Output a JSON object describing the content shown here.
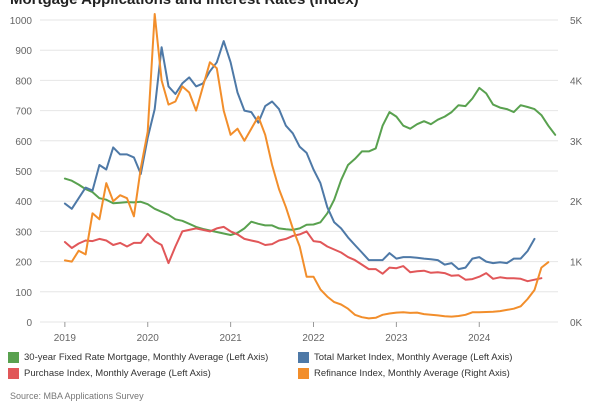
{
  "title": "Mortgage Applications and Interest Rates (Index)",
  "source": "Source: MBA Applications Survey",
  "colors": {
    "fixed30": "#59a14f",
    "total": "#4e79a7",
    "purchase": "#e15759",
    "refinance": "#f28e2b",
    "grid": "#e6e6e6",
    "axis": "#999999"
  },
  "legend": [
    {
      "key": "fixed30",
      "label": "30-year Fixed Rate Mortgage, Monthly Average (Left Axis)"
    },
    {
      "key": "total",
      "label": "Total Market Index, Monthly Average (Left Axis)"
    },
    {
      "key": "purchase",
      "label": "Purchase Index, Monthly Average (Left Axis)"
    },
    {
      "key": "refinance",
      "label": "Refinance Index, Monthly Average (Right Axis)"
    }
  ],
  "chart_data": {
    "type": "line",
    "title": "Mortgage Applications and Interest Rates (Index)",
    "x_start": "2019-01",
    "x_ticks": [
      "2019",
      "2020",
      "2021",
      "2022",
      "2023",
      "2024"
    ],
    "left_axis": {
      "min": 0,
      "max": 1000,
      "ticks": [
        0,
        100,
        200,
        300,
        400,
        500,
        600,
        700,
        800,
        900,
        1000
      ]
    },
    "right_axis": {
      "min": 0,
      "max": 5000,
      "ticks": [
        0,
        1000,
        2000,
        3000,
        4000,
        5000
      ],
      "tick_labels": [
        "0K",
        "1K",
        "2K",
        "3K",
        "4K",
        "5K"
      ]
    },
    "grid": true,
    "legend_position": "bottom",
    "series": [
      {
        "name": "30-year Fixed Rate Mortgage, Monthly Average (Left Axis)",
        "key": "fixed30",
        "axis": "left",
        "values": [
          475,
          468,
          455,
          440,
          430,
          410,
          405,
          393,
          395,
          397,
          396,
          398,
          390,
          375,
          365,
          355,
          340,
          335,
          325,
          315,
          308,
          303,
          298,
          293,
          288,
          295,
          310,
          332,
          325,
          320,
          320,
          310,
          307,
          305,
          310,
          322,
          323,
          330,
          360,
          405,
          470,
          520,
          540,
          565,
          565,
          575,
          650,
          695,
          680,
          650,
          640,
          655,
          665,
          655,
          670,
          680,
          695,
          718,
          715,
          740,
          775,
          757,
          720,
          710,
          705,
          695,
          718,
          712,
          705,
          685,
          650,
          620
        ]
      },
      {
        "name": "Total Market Index, Monthly Average (Left Axis)",
        "key": "total",
        "axis": "left",
        "values": [
          392,
          375,
          410,
          445,
          435,
          520,
          505,
          578,
          555,
          555,
          545,
          490,
          610,
          705,
          910,
          780,
          755,
          790,
          810,
          780,
          790,
          830,
          860,
          930,
          860,
          760,
          700,
          695,
          660,
          715,
          730,
          705,
          650,
          625,
          580,
          560,
          505,
          460,
          380,
          330,
          310,
          280,
          255,
          230,
          205,
          205,
          205,
          228,
          210,
          215,
          215,
          213,
          210,
          208,
          205,
          190,
          195,
          175,
          180,
          210,
          215,
          200,
          195,
          198,
          195,
          210,
          210,
          235,
          275
        ]
      },
      {
        "name": "Purchase Index, Monthly Average (Left Axis)",
        "key": "purchase",
        "axis": "left",
        "values": [
          265,
          245,
          260,
          270,
          268,
          275,
          270,
          255,
          262,
          250,
          262,
          262,
          292,
          268,
          255,
          195,
          250,
          300,
          305,
          310,
          305,
          300,
          310,
          315,
          300,
          290,
          275,
          270,
          265,
          255,
          258,
          270,
          275,
          285,
          290,
          300,
          268,
          265,
          250,
          240,
          230,
          215,
          205,
          190,
          175,
          175,
          160,
          180,
          178,
          185,
          165,
          168,
          170,
          163,
          165,
          162,
          153,
          155,
          140,
          142,
          150,
          162,
          143,
          148,
          145,
          145,
          143,
          135,
          140,
          145
        ]
      },
      {
        "name": "Refinance Index, Monthly Average (Right Axis)",
        "key": "refinance",
        "axis": "right",
        "values": [
          1020,
          1000,
          1180,
          1120,
          1800,
          1700,
          2300,
          2000,
          2100,
          2050,
          1750,
          2550,
          3150,
          5100,
          4000,
          3600,
          3650,
          3900,
          3800,
          3500,
          3900,
          4300,
          4200,
          3500,
          3100,
          3200,
          3000,
          3200,
          3400,
          3100,
          2600,
          2200,
          1900,
          1550,
          1250,
          750,
          750,
          540,
          420,
          330,
          290,
          220,
          120,
          80,
          60,
          70,
          120,
          140,
          155,
          160,
          150,
          155,
          130,
          120,
          110,
          95,
          90,
          100,
          120,
          160,
          160,
          165,
          170,
          180,
          200,
          220,
          260,
          380,
          530,
          900,
          990
        ]
      }
    ]
  }
}
